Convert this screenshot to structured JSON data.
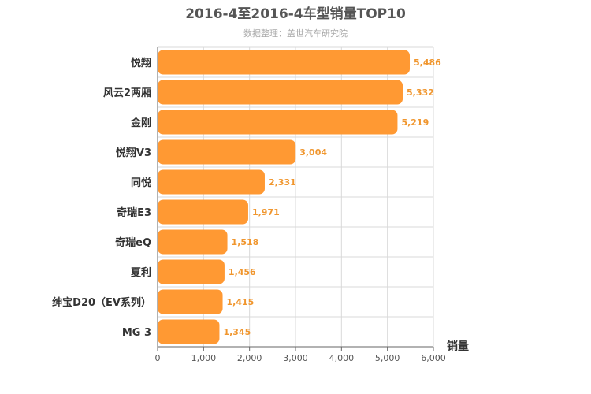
{
  "chart_data": {
    "type": "bar",
    "orientation": "horizontal",
    "title": "2016-4至2016-4车型销量TOP10",
    "subtitle": "数据整理：盖世汽车研究院",
    "xlabel": "销量",
    "ylabel": "",
    "categories": [
      "悦翔",
      "风云2两厢",
      "金刚",
      "悦翔V3",
      "同悦",
      "奇瑞E3",
      "奇瑞eQ",
      "夏利",
      "绅宝D20（EV系列）",
      "MG 3"
    ],
    "values": [
      5486,
      5332,
      5219,
      3004,
      2331,
      1971,
      1518,
      1456,
      1415,
      1345
    ],
    "value_labels": [
      "5,486",
      "5,332",
      "5,219",
      "3,004",
      "2,331",
      "1,971",
      "1,518",
      "1,456",
      "1,415",
      "1,345"
    ],
    "xlim": [
      0,
      6000
    ],
    "xticks": [
      0,
      1000,
      2000,
      3000,
      4000,
      5000,
      6000
    ],
    "xtick_labels": [
      "0",
      "1,000",
      "2,000",
      "3,000",
      "4,000",
      "5,000",
      "6,000"
    ],
    "grid": true,
    "legend": "none",
    "colors": {
      "bar": "#ff9933",
      "value_label": "#f0962e",
      "title": "#555555",
      "subtitle": "#aaaaaa",
      "category_label": "#333333",
      "tick_label": "#555555",
      "grid": "#d9d9d9",
      "axis": "#666666"
    }
  }
}
